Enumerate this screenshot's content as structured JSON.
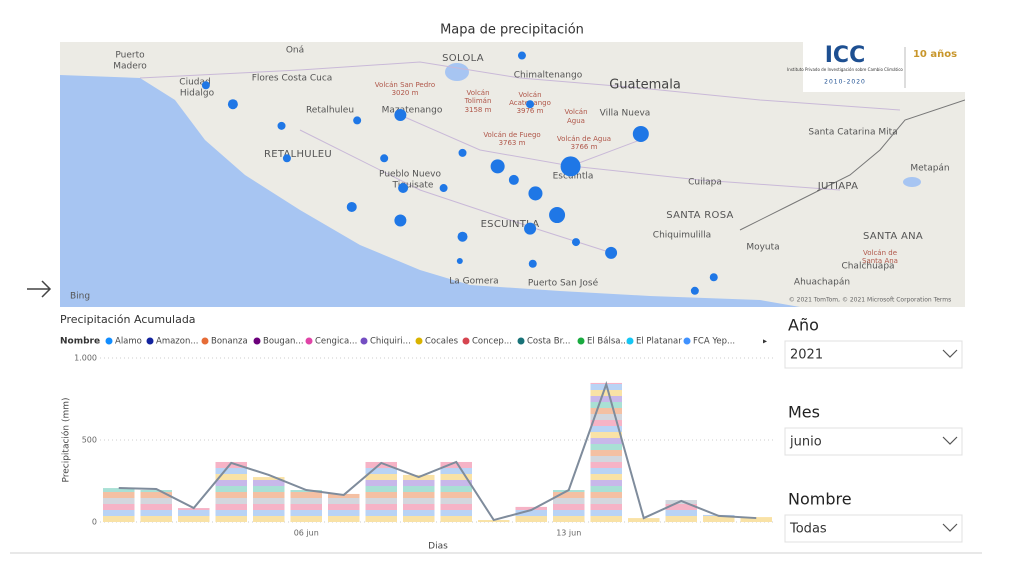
{
  "map": {
    "title": "Mapa de precipitación",
    "lon_range": [
      -92.66,
      -89.31
    ],
    "lat_range": [
      13.81,
      14.79
    ],
    "bubble_color": "#1f77e6",
    "labels": [
      "Puerto",
      "Madero",
      "Oná",
      "SOLOLA",
      "Ciudad",
      "Hidalgo",
      "Flores Costa Cuca",
      "Chimaltenango",
      "Guatemala",
      "Volcán San Pedro",
      "3020 m",
      "Volcán",
      "Tolimán",
      "3158 m",
      "Volcán",
      "Acatenango",
      "3976 m",
      "Retalhuleu",
      "Mazatenango",
      "Villa Nueva",
      "Volcán",
      "Agua",
      "Volcán de Fuego",
      "3763 m",
      "Volcán de Agua",
      "3766 m",
      "RETALHULEU",
      "Santa Catarina Mita",
      "Pueblo Nuevo",
      "Tiquisate",
      "Escuintla",
      "Cuilapa",
      "JUTIAPA",
      "Metapán",
      "SANTA ROSA",
      "ESCUINTLA",
      "Chiquimulilla",
      "SANTA ANA",
      "Moyuta",
      "Chalchuapa",
      "Volcán de",
      "Santa Ana",
      "Ahuachapán",
      "La Gomera",
      "Puerto San José",
      "Bing",
      "© 2021 TomTom, © 2021 Microsoft Corporation Terms"
    ],
    "logo": {
      "name": "ICC",
      "subtitle": "Instituto Privado de Investigación sobre Cambio Climático",
      "years": "2010-2020",
      "anniversary": "10 años"
    },
    "points": [
      {
        "lon": -92.12,
        "lat": 14.63,
        "value": 25
      },
      {
        "lon": -92.02,
        "lat": 14.56,
        "value": 39
      },
      {
        "lon": -91.84,
        "lat": 14.48,
        "value": 25
      },
      {
        "lon": -91.56,
        "lat": 14.5,
        "value": 25
      },
      {
        "lon": -91.4,
        "lat": 14.52,
        "value": 56
      },
      {
        "lon": -90.95,
        "lat": 14.74,
        "value": 25
      },
      {
        "lon": -90.92,
        "lat": 14.56,
        "value": 25
      },
      {
        "lon": -91.82,
        "lat": 14.36,
        "value": 25
      },
      {
        "lon": -91.46,
        "lat": 14.36,
        "value": 25
      },
      {
        "lon": -91.17,
        "lat": 14.38,
        "value": 25
      },
      {
        "lon": -91.04,
        "lat": 14.33,
        "value": 77
      },
      {
        "lon": -90.98,
        "lat": 14.28,
        "value": 39
      },
      {
        "lon": -90.77,
        "lat": 14.33,
        "value": 156
      },
      {
        "lon": -90.51,
        "lat": 14.45,
        "value": 100
      },
      {
        "lon": -91.39,
        "lat": 14.25,
        "value": 39
      },
      {
        "lon": -91.24,
        "lat": 14.25,
        "value": 25
      },
      {
        "lon": -90.9,
        "lat": 14.23,
        "value": 77
      },
      {
        "lon": -91.58,
        "lat": 14.18,
        "value": 39
      },
      {
        "lon": -91.4,
        "lat": 14.13,
        "value": 56
      },
      {
        "lon": -90.82,
        "lat": 14.15,
        "value": 100
      },
      {
        "lon": -90.92,
        "lat": 14.1,
        "value": 56
      },
      {
        "lon": -91.17,
        "lat": 14.07,
        "value": 39
      },
      {
        "lon": -90.75,
        "lat": 14.05,
        "value": 25
      },
      {
        "lon": -90.62,
        "lat": 14.01,
        "value": 56
      },
      {
        "lon": -91.18,
        "lat": 13.98,
        "value": 14
      },
      {
        "lon": -90.91,
        "lat": 13.97,
        "value": 25
      },
      {
        "lon": -90.24,
        "lat": 13.92,
        "value": 25
      },
      {
        "lon": -90.31,
        "lat": 13.87,
        "value": 25
      }
    ]
  },
  "chart_data": {
    "type": "bar",
    "title": "Precipitación Acumulada",
    "legend": {
      "title": "Nombre",
      "items": [
        {
          "name": "Alamo",
          "color": "#118dff"
        },
        {
          "name": "Amazon...",
          "color": "#12239e"
        },
        {
          "name": "Bonanza",
          "color": "#e66c37"
        },
        {
          "name": "Bougan...",
          "color": "#6b007b"
        },
        {
          "name": "Cengica...",
          "color": "#e044a7"
        },
        {
          "name": "Chiquiri...",
          "color": "#744ec2"
        },
        {
          "name": "Cocales",
          "color": "#d9b300"
        },
        {
          "name": "Concep...",
          "color": "#d64550"
        },
        {
          "name": "Costa Br...",
          "color": "#197278"
        },
        {
          "name": "El Bálsa...",
          "color": "#1aab40"
        },
        {
          "name": "El Platanar",
          "color": "#15c6f4"
        },
        {
          "name": "FCA Yep...",
          "color": "#4092ff"
        }
      ]
    },
    "x_label": "Dias",
    "y_label": "Precipitación (mm)",
    "categories": [
      null,
      null,
      null,
      null,
      null,
      "06 jun",
      null,
      null,
      null,
      null,
      null,
      null,
      "13 jun",
      null,
      null,
      null,
      null,
      null
    ],
    "values": [
      207,
      195,
      85,
      366,
      274,
      195,
      171,
      366,
      287,
      366,
      12,
      92,
      195,
      848,
      24,
      134,
      43,
      30
    ],
    "line": {
      "color": "#7f8c9c",
      "values": [
        207,
        201,
        85,
        360,
        287,
        195,
        165,
        360,
        274,
        366,
        12,
        73,
        195,
        840,
        24,
        128,
        37,
        24
      ]
    },
    "ylim": [
      0,
      1000
    ],
    "yticks": [
      0,
      500,
      {
        "value": 1000,
        "label": "1.000"
      }
    ],
    "grid": true
  },
  "filters": [
    {
      "label": "Año",
      "value": "2021"
    },
    {
      "label": "Mes",
      "value": "junio"
    },
    {
      "label": "Nombre",
      "value": "Todas"
    }
  ]
}
